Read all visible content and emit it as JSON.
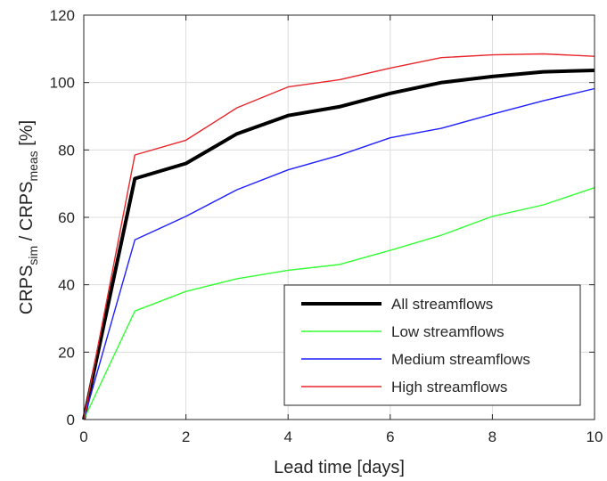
{
  "chart_data": {
    "type": "line",
    "title": "",
    "xlabel": "Lead time [days]",
    "ylabel": {
      "parts": [
        {
          "text": "CRPS",
          "sub": false
        },
        {
          "text": "sim",
          "sub": true
        },
        {
          "text": " / CRPS",
          "sub": false
        },
        {
          "text": "meas",
          "sub": true
        },
        {
          "text": " [%]",
          "sub": false
        }
      ]
    },
    "xlim": [
      0,
      10
    ],
    "ylim": [
      0,
      120
    ],
    "xticks": [
      0,
      2,
      4,
      6,
      8,
      10
    ],
    "yticks": [
      0,
      20,
      40,
      60,
      80,
      100,
      120
    ],
    "grid": true,
    "legend_position": "bottom-right",
    "x": [
      0,
      1,
      2,
      3,
      4,
      5,
      6,
      7,
      8,
      9,
      10
    ],
    "series": [
      {
        "name": "All streamflows",
        "color": "#000000",
        "width": "thick",
        "values": [
          0,
          71.5,
          76,
          84.8,
          90.2,
          92.8,
          96.8,
          100,
          101.8,
          103.2,
          103.6
        ]
      },
      {
        "name": "Low streamflows",
        "color": "#33ff33",
        "width": "thin",
        "values": [
          0,
          32.2,
          38,
          41.8,
          44.3,
          46,
          50.2,
          54.7,
          60.3,
          63.7,
          68.8
        ]
      },
      {
        "name": "Medium streamflows",
        "color": "#1f1fff",
        "width": "thin",
        "values": [
          0,
          53.3,
          60.3,
          68.2,
          74.1,
          78.4,
          83.6,
          86.4,
          90.6,
          94.6,
          98.2
        ]
      },
      {
        "name": "High streamflows",
        "color": "#e8262b",
        "width": "thin",
        "values": [
          0,
          78.5,
          82.9,
          92.5,
          98.7,
          100.8,
          104.3,
          107.4,
          108.2,
          108.5,
          107.8
        ]
      }
    ]
  }
}
